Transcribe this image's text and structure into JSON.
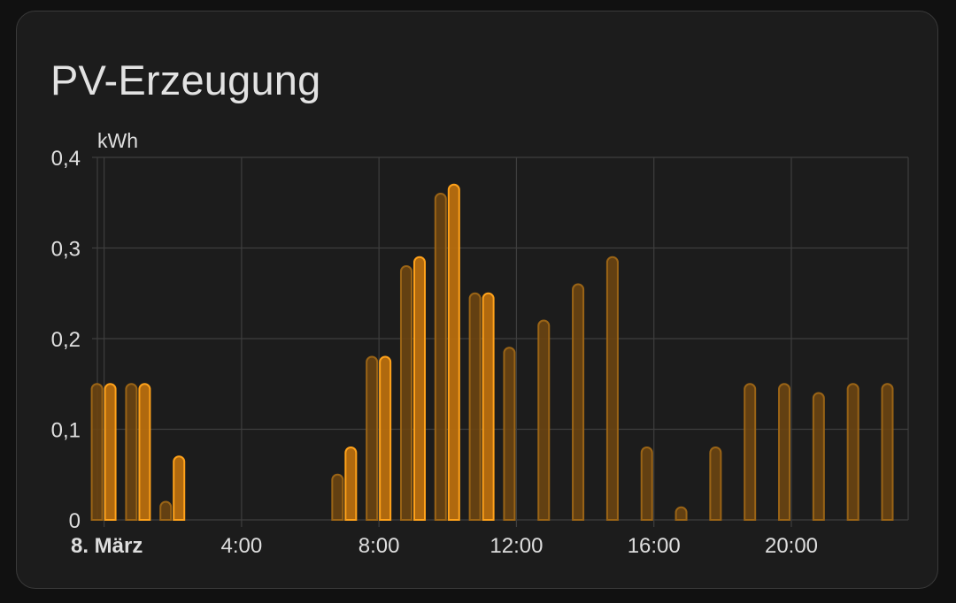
{
  "card": {
    "title": "PV-Erzeugung"
  },
  "colors": {
    "background": "#111111",
    "card": "#1c1c1c",
    "grid": "#3e3e3e",
    "text": "#dedede",
    "bar_stroke": "#ff9800",
    "bar_fill_light": "#6b4512",
    "bar_stroke_light": "#9a6416",
    "bar_fill_strong": "#b86e0e",
    "bar_stroke_strong": "#ffa21a"
  },
  "chart_data": {
    "type": "bar",
    "title": "",
    "xlabel": "",
    "ylabel": "kWh",
    "ylim": [
      0,
      0.4
    ],
    "xlim_hours": [
      -0.35,
      23.4
    ],
    "y_ticks": [
      {
        "value": 0,
        "label": "0"
      },
      {
        "value": 0.1,
        "label": "0,1"
      },
      {
        "value": 0.2,
        "label": "0,2"
      },
      {
        "value": 0.3,
        "label": "0,3"
      },
      {
        "value": 0.4,
        "label": "0,4"
      }
    ],
    "x_ticks": [
      {
        "hour": 0,
        "label": "8. März",
        "bold": true
      },
      {
        "hour": 4,
        "label": "4:00",
        "bold": false
      },
      {
        "hour": 8,
        "label": "8:00",
        "bold": false
      },
      {
        "hour": 12,
        "label": "12:00",
        "bold": false
      },
      {
        "hour": 16,
        "label": "16:00",
        "bold": false
      },
      {
        "hour": 20,
        "label": "20:00",
        "bold": false
      }
    ],
    "grid": true,
    "legend": "none",
    "series": [
      {
        "style": "light",
        "values": [
          0.15,
          0.15,
          0.02,
          0,
          0,
          0,
          0,
          0.05,
          0.18,
          0.28,
          0.36,
          0.25,
          0.19,
          0.22,
          0.26,
          0.29,
          0.08,
          0.01,
          0.08,
          0.15,
          0.15,
          0.14,
          0.15,
          0.15
        ]
      },
      {
        "style": "strong",
        "values": [
          0.15,
          0.15,
          0.07,
          0,
          0,
          0,
          0,
          0.08,
          0.18,
          0.29,
          0.37,
          0.25,
          null,
          null,
          null,
          null,
          null,
          null,
          null,
          null,
          null,
          null,
          null,
          null
        ]
      }
    ]
  }
}
